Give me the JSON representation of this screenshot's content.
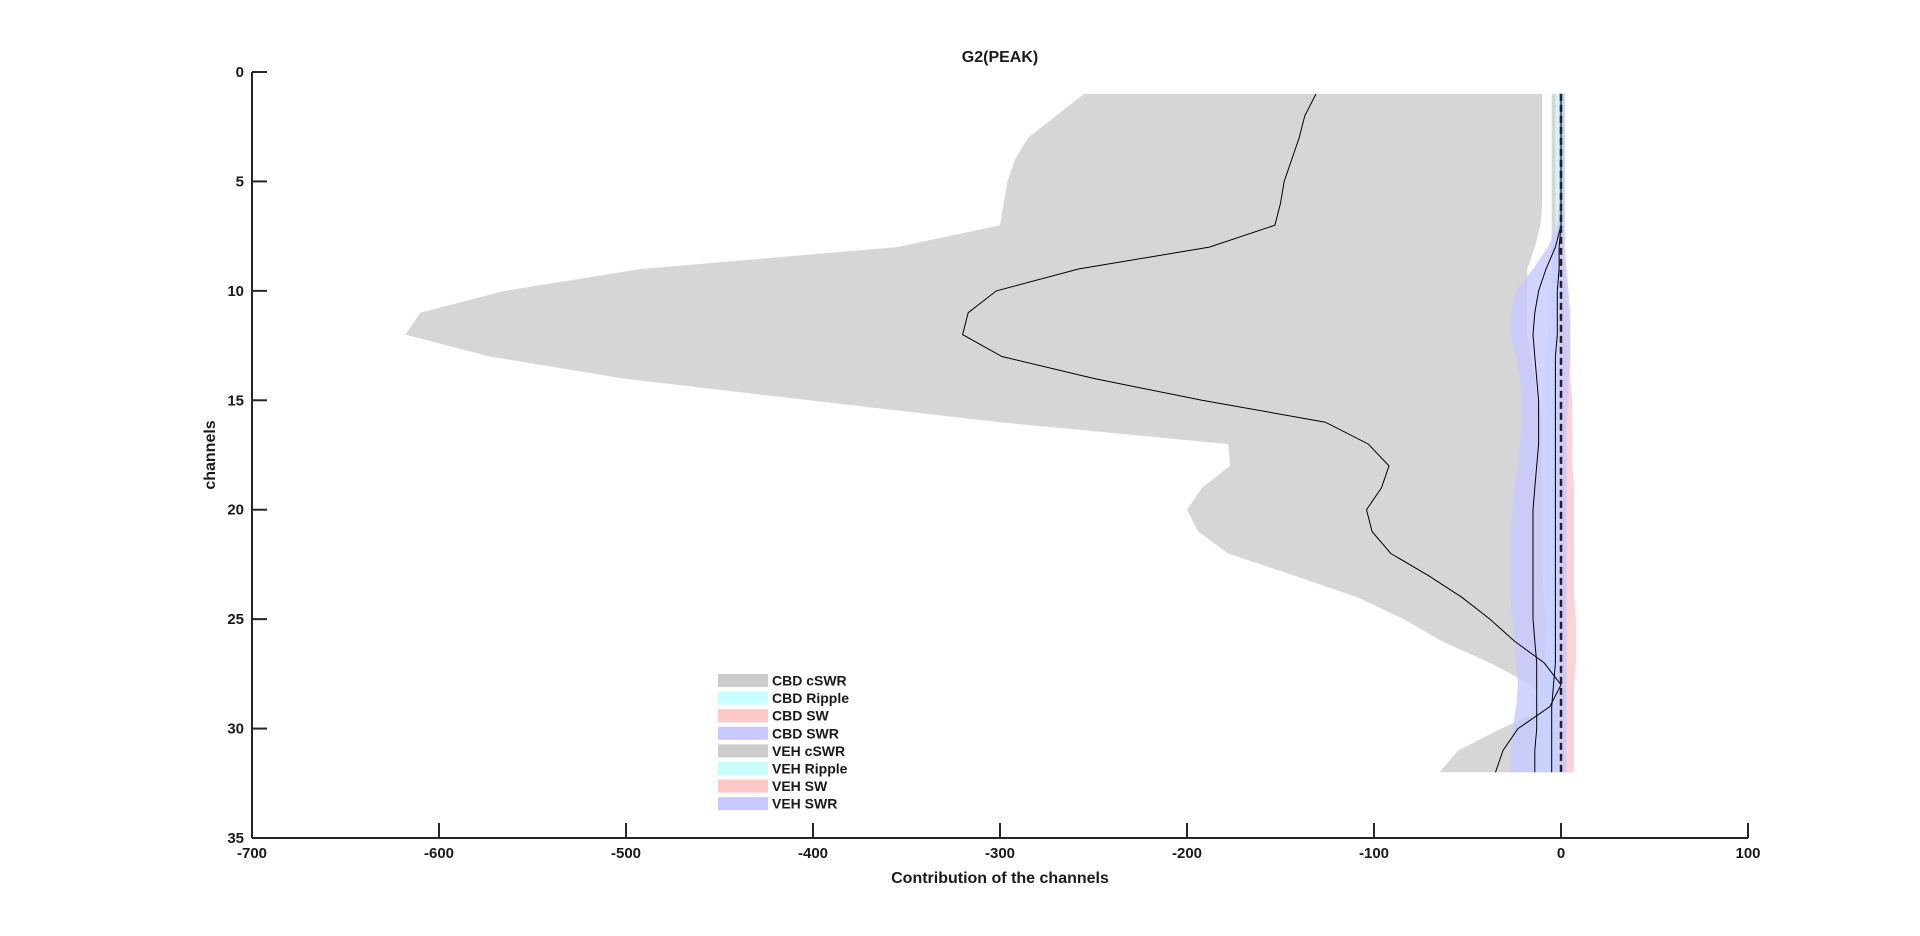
{
  "chart_data": {
    "type": "area",
    "orientation": "horizontal-x",
    "title": "G2(PEAK)",
    "xlabel": "Contribution of the channels",
    "ylabel": "channels",
    "xlim": [
      -700,
      100
    ],
    "ylim": [
      0,
      35
    ],
    "y_reversed": true,
    "x_ticks": [
      -700,
      -600,
      -500,
      -400,
      -300,
      -200,
      -100,
      0,
      100
    ],
    "y_ticks": [
      0,
      5,
      10,
      15,
      20,
      25,
      30,
      35
    ],
    "grid": false,
    "legend_position": "lower-left (inside axes)",
    "zero_line": "dashed black vertical line at x=0",
    "channels": [
      1,
      2,
      3,
      4,
      5,
      6,
      7,
      8,
      9,
      10,
      11,
      12,
      13,
      14,
      15,
      16,
      17,
      18,
      19,
      20,
      21,
      22,
      23,
      24,
      25,
      26,
      27,
      28,
      29,
      30,
      31,
      32
    ],
    "series": [
      {
        "name": "CBD cSWR",
        "color": "#cccccc",
        "lower": [
          -255,
          -270,
          -285,
          -292,
          -296,
          -298,
          -300,
          -355,
          -492,
          -565,
          -610,
          -618,
          -573,
          -502,
          -402,
          -300,
          -178,
          -177,
          -192,
          -200,
          -194,
          -178,
          -143,
          -109,
          -84,
          -64,
          -38,
          -16,
          -7,
          -32,
          -55,
          -65
        ],
        "upper": [
          -10,
          -10,
          -10,
          -10,
          -10,
          -10,
          -11,
          -14,
          -18,
          -18,
          -18,
          -18,
          -16,
          -14,
          -12,
          -10,
          -10,
          -10,
          -10,
          -10,
          -10,
          -10,
          -10,
          -9,
          -8,
          -7,
          -5,
          -3,
          -2,
          -2,
          -2,
          -2
        ]
      },
      {
        "name": "CBD Ripple",
        "color": "#c8ffff"
      },
      {
        "name": "CBD SW",
        "color": "#ffc8c8"
      },
      {
        "name": "CBD SWR",
        "color": "#c8c8ff"
      },
      {
        "name": "VEH cSWR",
        "color": "#cccccc",
        "lower": [
          -5,
          -5,
          -5,
          -5,
          -5,
          -5,
          -5,
          -5,
          -5,
          -5,
          -5,
          -5,
          -5,
          -5,
          -5,
          -5,
          -5,
          -5,
          -5,
          -5,
          -5,
          -5,
          -5,
          -5,
          -5,
          -5,
          -5,
          -5,
          -5,
          -6,
          -6,
          -6
        ],
        "upper": [
          2,
          2,
          2,
          2,
          2,
          2,
          2,
          2,
          2,
          2,
          2,
          2,
          2,
          2,
          2,
          2,
          2,
          2,
          2,
          2,
          2,
          2,
          2,
          2,
          2,
          2,
          2,
          2,
          2,
          2,
          2,
          2
        ]
      },
      {
        "name": "VEH Ripple",
        "color": "#c8ffff",
        "lower": [
          -3,
          -3,
          -3,
          -3,
          -3,
          -3,
          -3,
          -4,
          -5,
          -6,
          -6,
          -7,
          -8,
          -8,
          -8,
          -8,
          -8,
          -8,
          -8,
          -8,
          -8,
          -8,
          -8,
          -8,
          -8,
          -8,
          -9,
          -12,
          -15,
          -15,
          -15,
          -15
        ],
        "upper": [
          2,
          2,
          2,
          2,
          2,
          2,
          2,
          2,
          2,
          2,
          2,
          2,
          2,
          2,
          2,
          2,
          2,
          2,
          2,
          2,
          2,
          2,
          2,
          2,
          2,
          2,
          2,
          2,
          2,
          2,
          2,
          2
        ]
      },
      {
        "name": "VEH SW",
        "color": "#ffc8c8",
        "lower": [
          0,
          0,
          0,
          0,
          0,
          0,
          0,
          0,
          0,
          0,
          -1,
          -1,
          -1,
          -1,
          -1,
          -1,
          -1,
          -1,
          -1,
          -1,
          -1,
          -1,
          -1,
          -1,
          -1,
          -1,
          -1,
          -1,
          -1,
          -1,
          -1,
          -1
        ],
        "upper": [
          1,
          1,
          1,
          1,
          1,
          1,
          1,
          1,
          2,
          3,
          4,
          5,
          5,
          5,
          6,
          6,
          6,
          6,
          7,
          7,
          7,
          7,
          7,
          7,
          8,
          8,
          8,
          7,
          7,
          7,
          7,
          7
        ]
      },
      {
        "name": "VEH SWR",
        "color": "#c8c8ff",
        "lower": [
          -1,
          -1,
          -1,
          -1,
          -1,
          -1,
          -2,
          -7,
          -15,
          -24,
          -27,
          -27,
          -24,
          -22,
          -21,
          -21,
          -22,
          -23,
          -25,
          -26,
          -27,
          -27,
          -27,
          -27,
          -26,
          -25,
          -24,
          -23,
          -24,
          -26,
          -27,
          -27
        ],
        "upper": [
          2,
          2,
          2,
          2,
          2,
          2,
          2,
          2,
          3,
          4,
          5,
          5,
          5,
          4,
          4,
          3,
          3,
          3,
          3,
          3,
          3,
          3,
          3,
          3,
          3,
          3,
          3,
          3,
          3,
          3,
          3,
          3
        ]
      }
    ],
    "mean_lines": [
      {
        "series": "CBD cSWR",
        "values": [
          -131,
          -137,
          -140,
          -144,
          -148,
          -150,
          -153,
          -188,
          -258,
          -302,
          -317,
          -320,
          -299,
          -250,
          -192,
          -126,
          -103,
          -92,
          -96,
          -104,
          -101,
          -91,
          -71,
          -53,
          -38,
          -25,
          -9,
          0,
          -6,
          -23,
          -31,
          -35
        ]
      },
      {
        "series": "VEH SWR",
        "values": [
          0,
          0,
          0,
          0,
          0,
          0,
          0,
          -3,
          -8,
          -12,
          -14,
          -15,
          -14,
          -13,
          -12,
          -12,
          -12,
          -13,
          -14,
          -15,
          -15,
          -15,
          -15,
          -15,
          -15,
          -14,
          -13,
          -13,
          -13,
          -13,
          -14,
          -14
        ]
      },
      {
        "series": "VEH Ripple",
        "values": [
          0,
          0,
          0,
          0,
          0,
          0,
          0,
          -1,
          -1,
          -2,
          -2,
          -2,
          -3,
          -3,
          -3,
          -3,
          -3,
          -3,
          -3,
          -3,
          -3,
          -3,
          -3,
          -3,
          -3,
          -3,
          -3,
          -4,
          -5,
          -5,
          -5,
          -5
        ]
      }
    ]
  }
}
